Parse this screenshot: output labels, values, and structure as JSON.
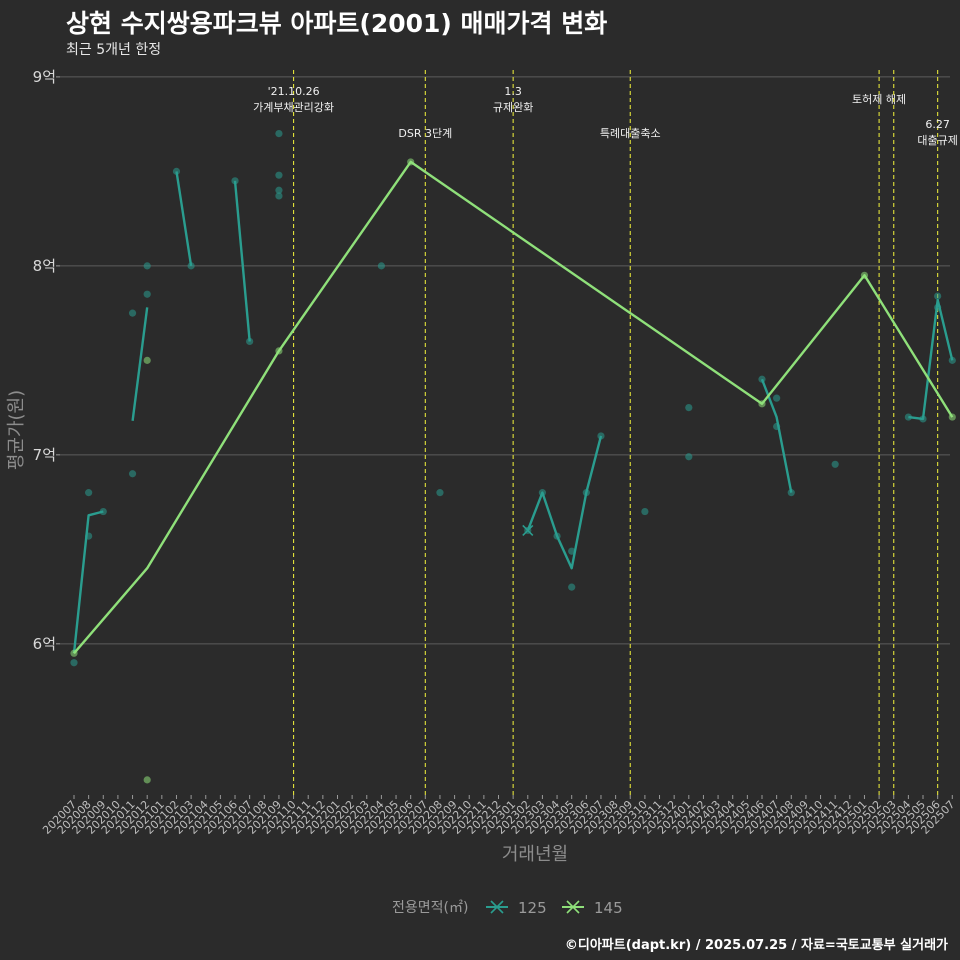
{
  "header": {
    "title": "상현 수지쌍용파크뷰 아파트(2001) 매매가격 변화",
    "subtitle": "최근 5개년 한정"
  },
  "caption": "©디아파트(dapt.kr) / 2025.07.25 / 자료=국토교통부 실거래가",
  "chart_data": {
    "type": "line",
    "title": "상현 수지쌍용파크뷰 아파트(2001) 매매가격 변화",
    "subtitle": "최근 5개년 한정",
    "xlabel": "거래년월",
    "ylabel": "평균가(원)",
    "ylim": [
      5.2,
      9.1
    ],
    "y_ticks": [
      6,
      7,
      8,
      9
    ],
    "y_tick_labels": [
      "6억",
      "7억",
      "8억",
      "9억"
    ],
    "y_unit": "억",
    "grid": true,
    "x_categories": [
      "202007",
      "202008",
      "202009",
      "202010",
      "202011",
      "202012",
      "202101",
      "202102",
      "202103",
      "202104",
      "202105",
      "202106",
      "202107",
      "202108",
      "202109",
      "202110",
      "202111",
      "202112",
      "202201",
      "202202",
      "202203",
      "202204",
      "202205",
      "202206",
      "202207",
      "202208",
      "202209",
      "202210",
      "202211",
      "202212",
      "202301",
      "202302",
      "202303",
      "202304",
      "202305",
      "202306",
      "202307",
      "202308",
      "202309",
      "202310",
      "202311",
      "202312",
      "202401",
      "202402",
      "202403",
      "202404",
      "202405",
      "202406",
      "202407",
      "202408",
      "202409",
      "202410",
      "202411",
      "202412",
      "202501",
      "202502",
      "202503",
      "202504",
      "202505",
      "202506",
      "202507"
    ],
    "legend": {
      "title": "전용면적(㎡)",
      "position": "bottom"
    },
    "series": [
      {
        "name": "125",
        "color": "#2a9d8f",
        "line": [
          [
            "202007",
            5.95
          ],
          [
            "202008",
            6.68
          ],
          [
            "202009",
            6.7
          ],
          null,
          [
            "202011",
            7.18
          ],
          [
            "202012",
            7.78
          ],
          null,
          [
            "202102",
            8.5
          ],
          [
            "202103",
            8.0
          ],
          null,
          [
            "202106",
            8.45
          ],
          [
            "202107",
            7.6
          ],
          null,
          [
            "202302",
            6.6
          ],
          [
            "202303",
            6.8
          ],
          [
            "202304",
            6.57
          ],
          [
            "202305",
            6.4
          ],
          [
            "202306",
            6.8
          ],
          [
            "202307",
            7.1
          ],
          null,
          [
            "202406",
            7.4
          ],
          [
            "202407",
            7.2
          ],
          [
            "202408",
            6.8
          ],
          null,
          [
            "202504",
            7.2
          ],
          [
            "202505",
            7.19
          ],
          [
            "202506",
            7.82
          ],
          [
            "202507",
            7.5
          ]
        ],
        "points": [
          [
            "202007",
            5.9
          ],
          [
            "202008",
            6.8
          ],
          [
            "202008",
            6.57
          ],
          [
            "202009",
            6.7
          ],
          [
            "202011",
            7.75
          ],
          [
            "202011",
            6.9
          ],
          [
            "202012",
            8.0
          ],
          [
            "202012",
            7.85
          ],
          [
            "202102",
            8.5
          ],
          [
            "202103",
            8.0
          ],
          [
            "202106",
            8.45
          ],
          [
            "202107",
            7.6
          ],
          [
            "202109",
            8.7
          ],
          [
            "202109",
            8.48
          ],
          [
            "202109",
            8.4
          ],
          [
            "202109",
            8.37
          ],
          [
            "202204",
            8.0
          ],
          [
            "202208",
            6.8
          ],
          [
            "202302",
            6.6
          ],
          [
            "202303",
            6.8
          ],
          [
            "202304",
            6.57
          ],
          [
            "202305",
            6.49
          ],
          [
            "202305",
            6.3
          ],
          [
            "202306",
            6.8
          ],
          [
            "202307",
            7.1
          ],
          [
            "202310",
            6.7
          ],
          [
            "202401",
            7.25
          ],
          [
            "202401",
            6.99
          ],
          [
            "202406",
            7.4
          ],
          [
            "202407",
            7.3
          ],
          [
            "202407",
            7.15
          ],
          [
            "202408",
            6.8
          ],
          [
            "202411",
            6.95
          ],
          [
            "202504",
            7.2
          ],
          [
            "202505",
            7.19
          ],
          [
            "202506",
            7.84
          ],
          [
            "202506",
            7.78
          ],
          [
            "202507",
            7.5
          ]
        ]
      },
      {
        "name": "145",
        "color": "#8fe07a",
        "line": [
          [
            "202007",
            5.95
          ],
          [
            "202012",
            6.4
          ],
          [
            "202109",
            7.55
          ],
          [
            "202206",
            8.55
          ],
          [
            "202406",
            7.27
          ],
          [
            "202501",
            7.95
          ],
          [
            "202507",
            7.2
          ]
        ],
        "points": [
          [
            "202007",
            5.95
          ],
          [
            "202012",
            7.5
          ],
          [
            "202012",
            5.28
          ],
          [
            "202109",
            7.55
          ],
          [
            "202206",
            8.55
          ],
          [
            "202406",
            7.27
          ],
          [
            "202501",
            7.95
          ],
          [
            "202507",
            7.2
          ]
        ]
      }
    ],
    "annotations": [
      {
        "x": "202110",
        "lines": [
          "'21.10.26",
          "가계부채관리강화"
        ],
        "level": 0
      },
      {
        "x": "202207",
        "lines": [
          "DSR 3단계"
        ],
        "level": 2
      },
      {
        "x": "202301",
        "lines": [
          "1.3",
          "규제완화"
        ],
        "level": 0
      },
      {
        "x": "202309",
        "lines": [
          "특례대출축소"
        ],
        "level": 2
      },
      {
        "x": "202502",
        "lines": [
          "토허제 해제"
        ],
        "level": 1
      },
      {
        "x": "202503",
        "lines": [],
        "level": 1
      },
      {
        "x": "202506",
        "lines": [
          "6.27",
          "대출규제"
        ],
        "level": 3
      }
    ]
  }
}
